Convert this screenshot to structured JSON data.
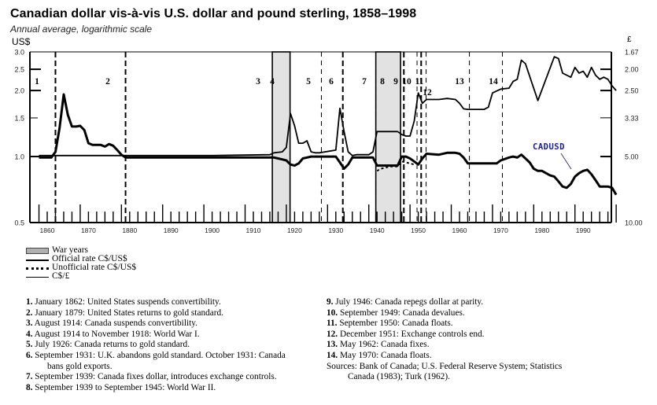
{
  "header": {
    "title": "Canadian dollar vis-à-vis U.S. dollar and pound sterling, 1858–1998",
    "subtitle": "Annual average, logarithmic scale",
    "left_axis_unit": "US$",
    "right_axis_unit": "£"
  },
  "chart_data": {
    "type": "line",
    "title": "Canadian dollar vis-à-vis U.S. dollar and pound sterling, 1858–1998",
    "subtitle": "Annual average, logarithmic scale",
    "xlabel": "",
    "ylabel_left": "US$",
    "ylabel_right": "£",
    "x_ticks": [
      "1860",
      "1870",
      "1880",
      "1890",
      "1900",
      "1910",
      "1920",
      "1930",
      "1940",
      "1950",
      "1960",
      "1970",
      "1980",
      "1990"
    ],
    "y_left_ticks": [
      "3.0",
      "2.5",
      "2.0",
      "1.5",
      "1.0",
      "0.5"
    ],
    "y_right_ticks": [
      "1.67",
      "2.00",
      "2.50",
      "3.33",
      "5.00",
      "10.00"
    ],
    "ylim_left": [
      0.5,
      3.0
    ],
    "ylim_right": [
      10.0,
      1.67
    ],
    "scale": "log",
    "grid": false,
    "war_years": [
      {
        "label": "WWI",
        "start": 1914.6,
        "end": 1918.9
      },
      {
        "label": "WWII",
        "start": 1939.7,
        "end": 1945.7
      }
    ],
    "event_markers": [
      {
        "id": "1",
        "year": 1862.0,
        "style": "dashed-bold"
      },
      {
        "id": "2",
        "year": 1879.0,
        "style": "dashed-bold"
      },
      {
        "id": "3",
        "year": 1914.6,
        "style": "solid"
      },
      {
        "id": "4",
        "year": 1918.9,
        "style": "solid"
      },
      {
        "id": "5",
        "year": 1926.5,
        "style": "dashed"
      },
      {
        "id": "6",
        "year": 1931.7,
        "style": "dashed-bold"
      },
      {
        "id": "7",
        "year": 1939.7,
        "style": "dashed"
      },
      {
        "id": "8",
        "year": 1945.7,
        "style": "solid"
      },
      {
        "id": "9",
        "year": 1946.5,
        "style": "dashed-bold"
      },
      {
        "id": "10",
        "year": 1949.7,
        "style": "dashed"
      },
      {
        "id": "11",
        "year": 1950.7,
        "style": "dashed-bold"
      },
      {
        "id": "12",
        "year": 1951.9,
        "style": "dashed"
      },
      {
        "id": "13",
        "year": 1962.4,
        "style": "dashed"
      },
      {
        "id": "14",
        "year": 1970.4,
        "style": "dashed"
      }
    ],
    "series": [
      {
        "name": "Official rate C$/US$",
        "axis": "left",
        "x": [
          1858,
          1861,
          1862,
          1863,
          1864,
          1865,
          1866,
          1867,
          1868,
          1869,
          1870,
          1871,
          1872,
          1873,
          1874,
          1875,
          1876,
          1877,
          1878,
          1879,
          1880,
          1890,
          1900,
          1910,
          1914,
          1915,
          1916,
          1917,
          1918,
          1919,
          1920,
          1921,
          1922,
          1923,
          1924,
          1925,
          1926,
          1930,
          1931,
          1932,
          1933,
          1934,
          1935,
          1938,
          1939,
          1940,
          1945,
          1946,
          1947,
          1948,
          1949,
          1950,
          1951,
          1952,
          1955,
          1957,
          1959,
          1960,
          1961,
          1962,
          1965,
          1969,
          1970,
          1972,
          1973,
          1974,
          1975,
          1976,
          1977,
          1978,
          1979,
          1980,
          1981,
          1982,
          1983,
          1984,
          1985,
          1986,
          1987,
          1988,
          1989,
          1990,
          1991,
          1992,
          1993,
          1994,
          1995,
          1996,
          1997,
          1998
        ],
        "values": [
          0.99,
          0.99,
          1.05,
          1.35,
          1.92,
          1.55,
          1.37,
          1.37,
          1.38,
          1.32,
          1.15,
          1.13,
          1.13,
          1.13,
          1.11,
          1.14,
          1.12,
          1.07,
          1.02,
          0.99,
          0.99,
          0.99,
          0.99,
          0.99,
          0.99,
          0.99,
          0.98,
          0.97,
          0.96,
          0.92,
          0.91,
          0.93,
          0.98,
          0.99,
          1.0,
          1.0,
          1.0,
          1.0,
          0.94,
          0.88,
          0.92,
          0.99,
          0.99,
          0.99,
          0.99,
          0.91,
          0.91,
          1.0,
          1.0,
          0.98,
          0.95,
          0.92,
          0.98,
          1.03,
          1.02,
          1.04,
          1.04,
          1.03,
          0.99,
          0.93,
          0.93,
          0.93,
          0.96,
          0.99,
          1.0,
          0.99,
          1.02,
          0.98,
          0.94,
          0.88,
          0.86,
          0.86,
          0.84,
          0.82,
          0.81,
          0.77,
          0.73,
          0.72,
          0.75,
          0.81,
          0.84,
          0.86,
          0.87,
          0.83,
          0.78,
          0.73,
          0.73,
          0.73,
          0.72,
          0.67
        ]
      },
      {
        "name": "Unofficial rate C$/US$",
        "axis": "left",
        "x": [
          1940,
          1941,
          1942,
          1943,
          1944,
          1945,
          1946,
          1947,
          1948,
          1949
        ],
        "values": [
          0.86,
          0.88,
          0.89,
          0.9,
          0.9,
          0.9,
          0.95,
          0.94,
          0.93,
          0.92
        ]
      },
      {
        "name": "C$/£",
        "axis": "right",
        "x": [
          1858,
          1879,
          1900,
          1914,
          1915,
          1917,
          1918,
          1919,
          1920,
          1921,
          1922,
          1923,
          1924,
          1925,
          1926,
          1930,
          1931,
          1932,
          1933,
          1934,
          1935,
          1938,
          1939,
          1940,
          1945,
          1946,
          1947,
          1948,
          1949,
          1950,
          1951,
          1952,
          1955,
          1957,
          1959,
          1960,
          1961,
          1962,
          1966,
          1967,
          1968,
          1970,
          1972,
          1973,
          1974,
          1975,
          1976,
          1979,
          1983,
          1984,
          1985,
          1987,
          1988,
          1989,
          1990,
          1991,
          1992,
          1993,
          1994,
          1995,
          1996,
          1997,
          1998
        ],
        "plot_position_left_scale": [
          1.01,
          1.01,
          1.01,
          1.02,
          1.04,
          1.05,
          1.1,
          1.57,
          1.38,
          1.15,
          1.15,
          1.18,
          1.05,
          1.04,
          1.04,
          1.07,
          1.66,
          1.3,
          1.05,
          1.01,
          1.02,
          1.02,
          1.05,
          1.3,
          1.3,
          1.26,
          1.24,
          1.24,
          1.45,
          1.95,
          1.75,
          1.82,
          1.82,
          1.84,
          1.82,
          1.75,
          1.65,
          1.64,
          1.64,
          1.68,
          1.95,
          2.03,
          2.05,
          2.2,
          2.25,
          2.75,
          2.65,
          1.8,
          2.85,
          2.8,
          2.4,
          2.3,
          2.55,
          2.4,
          2.45,
          2.3,
          2.55,
          2.35,
          2.25,
          2.3,
          2.25,
          2.1,
          2.0
        ],
        "values": [
          4.95,
          4.95,
          4.95,
          4.9,
          4.8,
          4.75,
          4.55,
          3.18,
          3.62,
          4.35,
          4.35,
          4.24,
          4.76,
          4.8,
          4.8,
          4.67,
          3.01,
          3.85,
          4.76,
          4.95,
          4.9,
          4.9,
          4.76,
          3.85,
          3.85,
          3.97,
          4.03,
          4.03,
          3.45,
          2.56,
          2.86,
          2.75,
          2.75,
          2.72,
          2.75,
          2.86,
          3.03,
          3.05,
          3.05,
          2.98,
          2.56,
          2.46,
          2.44,
          2.27,
          2.22,
          1.82,
          1.89,
          2.78,
          1.75,
          1.79,
          2.08,
          2.17,
          1.96,
          2.08,
          2.04,
          2.17,
          1.96,
          2.13,
          2.22,
          2.17,
          2.22,
          2.38,
          2.5
        ]
      }
    ],
    "annotations": [
      {
        "text": "CADUSD",
        "x": 1980,
        "y": 1.05,
        "color": "#1a1aa6"
      }
    ]
  },
  "legend": {
    "items": [
      {
        "label": "War years",
        "swatch": "war"
      },
      {
        "label": "Official rate C$/US$",
        "swatch": "solid"
      },
      {
        "label": "Unofficial rate C$/US$",
        "swatch": "dotted"
      },
      {
        "label": "C$/£",
        "swatch": "thin"
      }
    ]
  },
  "notes": {
    "left": [
      {
        "num": "1.",
        "text": " January 1862: United States suspends convertibility."
      },
      {
        "num": "2.",
        "text": " January 1879: United States returns to gold standard."
      },
      {
        "num": "3.",
        "text": " August 1914: Canada suspends convertibility."
      },
      {
        "num": "4.",
        "text": " August 1914 to November 1918: World War I."
      },
      {
        "num": "5.",
        "text": " July 1926: Canada returns to gold standard."
      },
      {
        "num": "6.",
        "text": " September 1931: U.K. abandons gold standard. October 1931: Canada",
        "cont": "bans gold exports."
      },
      {
        "num": "7.",
        "text": " September 1939: Canada fixes dollar, introduces exchange controls."
      },
      {
        "num": "8.",
        "text": " September 1939 to September 1945: World War II."
      }
    ],
    "right": [
      {
        "num": "9.",
        "text": " July 1946: Canada repegs dollar at parity."
      },
      {
        "num": "10.",
        "text": " September 1949: Canada devalues."
      },
      {
        "num": "11.",
        "text": " September 1950: Canada floats."
      },
      {
        "num": "12.",
        "text": " December 1951: Exchange controls end."
      },
      {
        "num": "13.",
        "text": " May 1962: Canada fixes."
      },
      {
        "num": "14.",
        "text": " May 1970: Canada floats."
      }
    ],
    "sources": "Sources: Bank of Canada; U.S. Federal Reserve System; Statistics",
    "sources_cont": "Canada (1983); Turk (1962)."
  }
}
